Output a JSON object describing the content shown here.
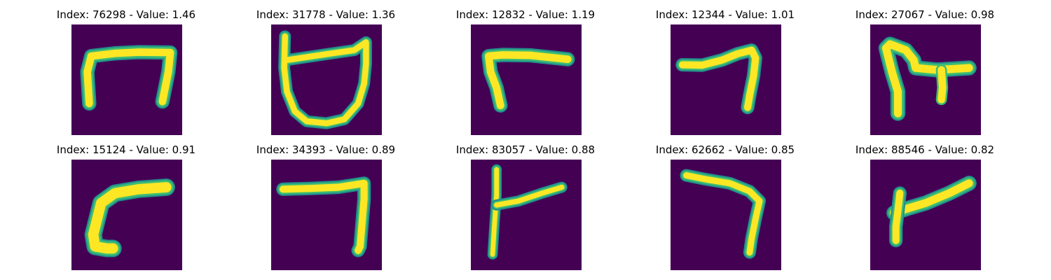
{
  "colors": {
    "background": "#440154",
    "stroke": "#fde725",
    "stroke_edge": "#3fbc73",
    "stroke_mid": "#21918c"
  },
  "panels": [
    {
      "title": "Index: 76298 - Value: 1.46"
    },
    {
      "title": "Index: 31778 - Value: 1.36"
    },
    {
      "title": "Index: 12832 - Value: 1.19"
    },
    {
      "title": "Index: 12344 - Value: 1.01"
    },
    {
      "title": "Index: 27067 - Value: 0.98"
    },
    {
      "title": "Index: 15124 - Value: 0.91"
    },
    {
      "title": "Index: 34393 - Value: 0.89"
    },
    {
      "title": "Index: 83057 - Value: 0.88"
    },
    {
      "title": "Index: 62662 - Value: 0.85"
    },
    {
      "title": "Index: 88546 - Value: 0.82"
    }
  ]
}
